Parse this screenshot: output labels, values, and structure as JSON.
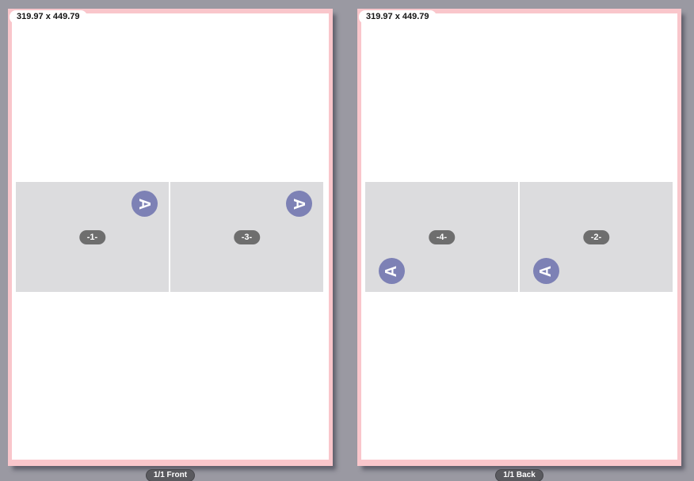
{
  "canvas": {
    "background": "#9a99a2"
  },
  "colors": {
    "sheet_bleed_border": "#f9c6cb",
    "sheet_fill": "#ffffff",
    "page_placeholder_fill": "#dcdcde",
    "orientation_badge": "#7d81b5",
    "number_pill": "#6e6e6e",
    "footer_pill": "#5a5a5f"
  },
  "sheets": [
    {
      "id": "front",
      "size_label": "319.97 x 449.79",
      "footer_label": "1/1 Front",
      "pages": [
        {
          "number": "-1-",
          "orientation_letter": "A",
          "orientation": "rotated-right"
        },
        {
          "number": "-3-",
          "orientation_letter": "A",
          "orientation": "rotated-right"
        }
      ]
    },
    {
      "id": "back",
      "size_label": "319.97 x 449.79",
      "footer_label": "1/1 Back",
      "pages": [
        {
          "number": "-4-",
          "orientation_letter": "A",
          "orientation": "rotated-left"
        },
        {
          "number": "-2-",
          "orientation_letter": "A",
          "orientation": "rotated-left"
        }
      ]
    }
  ]
}
